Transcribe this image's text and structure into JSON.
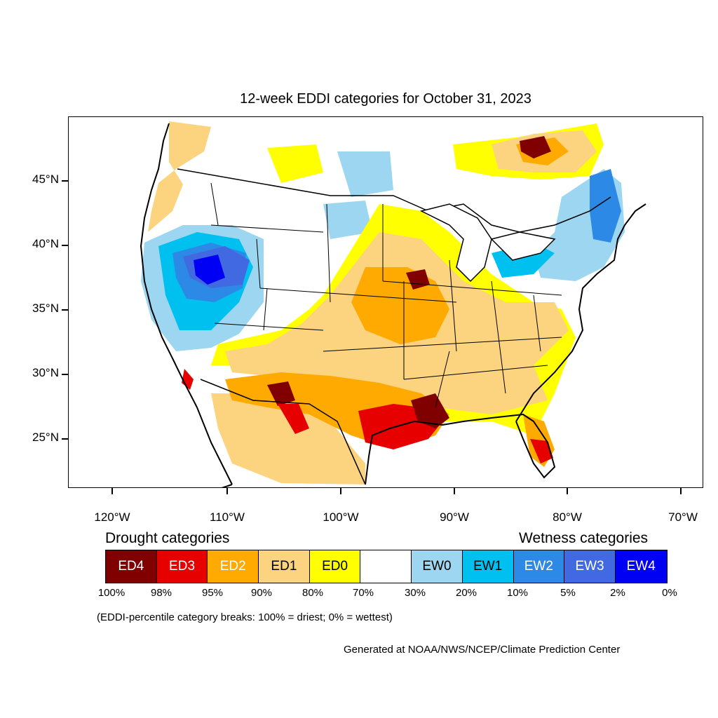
{
  "title": "12-week EDDI categories for October 31, 2023",
  "lat_labels": [
    "45°N",
    "40°N",
    "35°N",
    "30°N",
    "25°N"
  ],
  "lon_labels": [
    "120°W",
    "110°W",
    "100°W",
    "90°W",
    "80°W",
    "70°W"
  ],
  "legend": {
    "drought_heading": "Drought categories",
    "wetness_heading": "Wetness categories",
    "categories": [
      {
        "label": "ED4",
        "color": "#800000"
      },
      {
        "label": "ED3",
        "color": "#e60000"
      },
      {
        "label": "ED2",
        "color": "#ffaa00"
      },
      {
        "label": "ED1",
        "color": "#fcd37f"
      },
      {
        "label": "ED0",
        "color": "#ffff00"
      },
      {
        "label": "",
        "color": "#ffffff"
      },
      {
        "label": "EW0",
        "color": "#9dd6f0"
      },
      {
        "label": "EW1",
        "color": "#00c0f0"
      },
      {
        "label": "EW2",
        "color": "#2c8ae6"
      },
      {
        "label": "EW3",
        "color": "#4169e1"
      },
      {
        "label": "EW4",
        "color": "#0000f5"
      }
    ],
    "breaks": [
      "100%",
      "98%",
      "95%",
      "90%",
      "80%",
      "70%",
      "30%",
      "20%",
      "10%",
      "5%",
      "2%",
      "0%"
    ]
  },
  "note": "(EDDI-percentile category breaks: 100% = driest; 0% = wettest)",
  "credit": "Generated at NOAA/NWS/NCEP/Climate Prediction Center"
}
